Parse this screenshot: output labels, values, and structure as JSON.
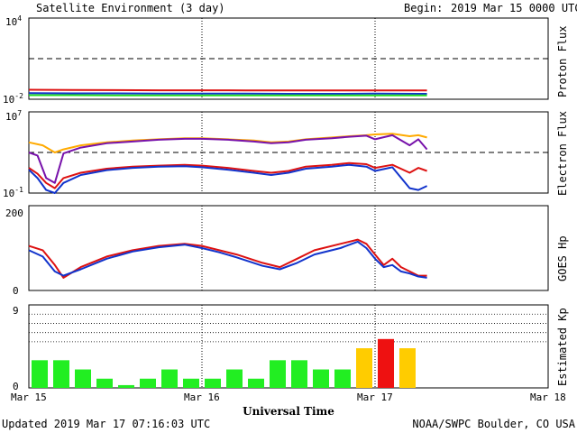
{
  "header": {
    "title": "Satellite Environment (3 day)",
    "begin_label": "Begin:",
    "begin_value": "2019 Mar 15 0000 UTC"
  },
  "footer": {
    "updated": "Updated 2019 Mar 17 07:16:03 UTC",
    "credit": "NOAA/SWPC Boulder, CO USA"
  },
  "x_axis": {
    "title": "Universal Time",
    "tick_labels": [
      "Mar 15",
      "Mar 16",
      "Mar 17",
      "Mar 18"
    ]
  },
  "chart_data": [
    {
      "type": "line",
      "panel": "Proton Flux",
      "ylabel": "Proton Flux",
      "ytick_labels": [
        {
          "base": "10",
          "exp": "4"
        },
        {
          "base": "10",
          "exp": "-2"
        }
      ],
      "yscale": "log",
      "ylim": [
        0.01,
        10000
      ],
      "x_range_days": [
        0,
        3
      ],
      "reference_lines": [
        {
          "y": 10,
          "style": "dashed"
        }
      ],
      "series": [
        {
          "color": "#dd1111",
          "x": [
            0,
            0.25,
            0.5,
            0.75,
            1,
            1.25,
            1.5,
            1.75,
            2,
            2.25,
            2.3
          ],
          "y": [
            0.05,
            0.048,
            0.047,
            0.046,
            0.046,
            0.045,
            0.045,
            0.044,
            0.045,
            0.044,
            0.044
          ]
        },
        {
          "color": "#1133cc",
          "x": [
            0,
            0.25,
            0.5,
            0.75,
            1,
            1.25,
            1.5,
            1.75,
            2,
            2.25,
            2.3
          ],
          "y": [
            0.028,
            0.027,
            0.027,
            0.026,
            0.026,
            0.026,
            0.025,
            0.025,
            0.026,
            0.025,
            0.025
          ]
        },
        {
          "color": "#22dd22",
          "x": [
            0,
            0.25,
            0.5,
            0.75,
            1,
            1.25,
            1.5,
            1.75,
            2,
            2.25,
            2.3
          ],
          "y": [
            0.02,
            0.02,
            0.019,
            0.019,
            0.019,
            0.019,
            0.019,
            0.019,
            0.019,
            0.019,
            0.019
          ]
        }
      ]
    },
    {
      "type": "line",
      "panel": "Electron Flux",
      "ylabel": "Electron Flux",
      "ytick_labels": [
        {
          "base": "10",
          "exp": "7"
        },
        {
          "base": "10",
          "exp": "-1"
        }
      ],
      "yscale": "log",
      "ylim": [
        0.1,
        10000000
      ],
      "x_range_days": [
        0,
        3
      ],
      "reference_lines": [
        {
          "y": 1000,
          "style": "dashed"
        }
      ],
      "series": [
        {
          "color": "#ffaa00",
          "x": [
            0,
            0.08,
            0.15,
            0.2,
            0.3,
            0.45,
            0.6,
            0.75,
            0.9,
            1.0,
            1.15,
            1.3,
            1.4,
            1.5,
            1.6,
            1.75,
            1.85,
            1.95,
            2.0,
            2.1,
            2.2,
            2.25,
            2.3
          ],
          "y": [
            10000,
            5000,
            1000,
            2000,
            5000,
            10000,
            15000,
            20000,
            25000,
            25000,
            20000,
            15000,
            10000,
            12000,
            20000,
            30000,
            40000,
            50000,
            60000,
            70000,
            40000,
            50000,
            30000
          ]
        },
        {
          "color": "#7711aa",
          "x": [
            0,
            0.05,
            0.1,
            0.15,
            0.2,
            0.3,
            0.45,
            0.6,
            0.75,
            0.9,
            1.0,
            1.15,
            1.3,
            1.4,
            1.5,
            1.6,
            1.75,
            1.85,
            1.95,
            2.0,
            2.1,
            2.2,
            2.25,
            2.3
          ],
          "y": [
            1000,
            500,
            3,
            1,
            800,
            3000,
            8000,
            12000,
            18000,
            22000,
            22000,
            18000,
            12000,
            8000,
            10000,
            18000,
            25000,
            35000,
            45000,
            20000,
            50000,
            5000,
            20000,
            2000
          ]
        },
        {
          "color": "#dd1111",
          "x": [
            0,
            0.05,
            0.1,
            0.15,
            0.2,
            0.3,
            0.45,
            0.6,
            0.75,
            0.9,
            1.0,
            1.15,
            1.3,
            1.4,
            1.5,
            1.6,
            1.75,
            1.85,
            1.95,
            2.0,
            2.1,
            2.2,
            2.25,
            2.3
          ],
          "y": [
            30,
            8,
            1,
            0.3,
            3,
            10,
            25,
            40,
            50,
            60,
            50,
            30,
            15,
            10,
            15,
            40,
            60,
            90,
            70,
            30,
            60,
            10,
            30,
            15
          ]
        },
        {
          "color": "#1133cc",
          "x": [
            0,
            0.05,
            0.1,
            0.15,
            0.2,
            0.3,
            0.45,
            0.6,
            0.75,
            0.9,
            1.0,
            1.15,
            1.3,
            1.4,
            1.5,
            1.6,
            1.75,
            1.85,
            1.95,
            2.0,
            2.1,
            2.2,
            2.25,
            2.3
          ],
          "y": [
            20,
            3,
            0.2,
            0.1,
            1,
            6,
            18,
            30,
            40,
            45,
            35,
            20,
            10,
            6,
            10,
            25,
            40,
            60,
            40,
            15,
            35,
            0.3,
            0.2,
            0.5
          ]
        }
      ]
    },
    {
      "type": "line",
      "panel": "GOES Hp",
      "ylabel": "GOES Hp",
      "ytick_labels": [
        "200",
        "0"
      ],
      "ylim": [
        0,
        200
      ],
      "x_range_days": [
        0,
        3
      ],
      "series": [
        {
          "color": "#dd1111",
          "x": [
            0,
            0.08,
            0.15,
            0.2,
            0.3,
            0.45,
            0.6,
            0.75,
            0.9,
            1.0,
            1.1,
            1.2,
            1.35,
            1.45,
            1.55,
            1.65,
            1.8,
            1.9,
            1.95,
            2.0,
            2.05,
            2.1,
            2.15,
            2.2,
            2.25,
            2.3
          ],
          "y": [
            105,
            95,
            60,
            30,
            55,
            80,
            95,
            105,
            110,
            105,
            95,
            85,
            65,
            55,
            75,
            95,
            110,
            120,
            110,
            85,
            60,
            75,
            55,
            45,
            35,
            35
          ]
        },
        {
          "color": "#1133cc",
          "x": [
            0,
            0.08,
            0.15,
            0.2,
            0.3,
            0.45,
            0.6,
            0.75,
            0.9,
            1.0,
            1.1,
            1.2,
            1.35,
            1.45,
            1.55,
            1.65,
            1.8,
            1.9,
            1.95,
            2.0,
            2.05,
            2.1,
            2.15,
            2.2,
            2.25,
            2.3
          ],
          "y": [
            95,
            80,
            45,
            35,
            50,
            75,
            92,
            102,
            108,
            100,
            90,
            78,
            58,
            50,
            65,
            85,
            100,
            115,
            100,
            75,
            55,
            60,
            45,
            40,
            33,
            30
          ]
        }
      ]
    },
    {
      "type": "bar",
      "panel": "Estimated Kp",
      "ylabel": "Estimated Kp",
      "ytick_labels": [
        "9",
        "0"
      ],
      "ylim": [
        0,
        9
      ],
      "x_range_days": [
        0,
        3
      ],
      "bar_width_days": 0.125,
      "hgrid": [
        5,
        6,
        7,
        8,
        9
      ],
      "values": [
        3,
        3,
        2,
        1,
        0.3,
        1,
        2,
        1,
        1,
        2,
        1,
        3,
        3,
        2,
        2,
        4.3,
        5.3,
        4.3
      ],
      "colors": [
        "#22ee22",
        "#22ee22",
        "#22ee22",
        "#22ee22",
        "#22ee22",
        "#22ee22",
        "#22ee22",
        "#22ee22",
        "#22ee22",
        "#22ee22",
        "#22ee22",
        "#22ee22",
        "#22ee22",
        "#22ee22",
        "#22ee22",
        "#ffcc00",
        "#ee1111",
        "#ffcc00"
      ]
    }
  ]
}
